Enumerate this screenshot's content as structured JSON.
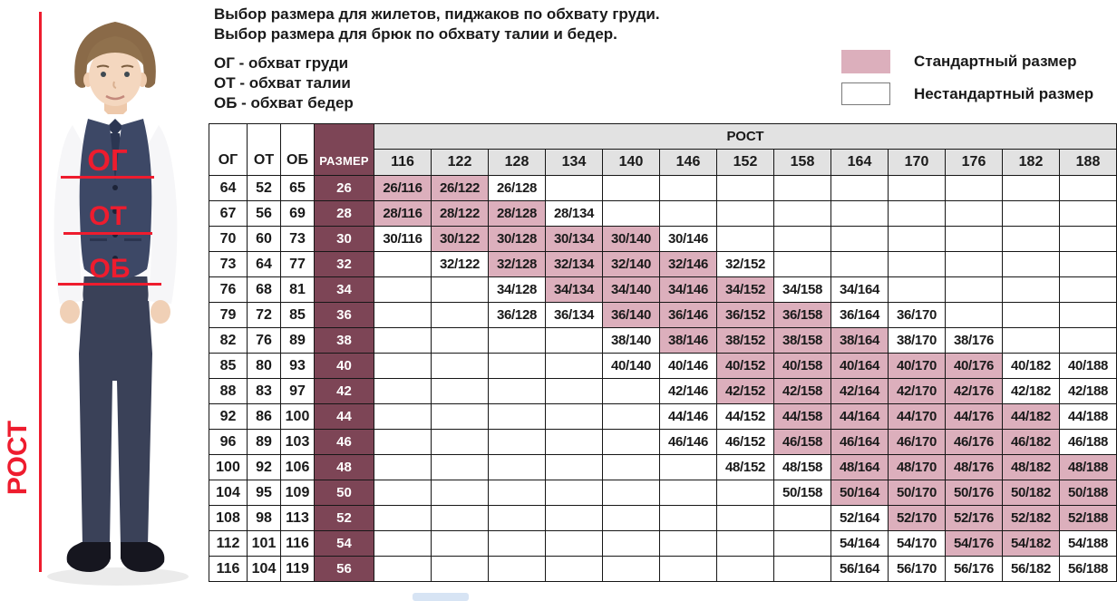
{
  "page": {
    "title_line1": "Выбор размера для жилетов, пиджаков по обхвату груди.",
    "title_line2": "Выбор размера для брюк по обхвату талии и бедер.",
    "definitions": [
      "ОГ - обхват груди",
      "ОТ - обхват талии",
      "ОБ - обхват бедер"
    ]
  },
  "legend": {
    "standard": "Стандартный размер",
    "nonstandard": "Нестандартный размер"
  },
  "figure": {
    "chest_label": "ОГ",
    "waist_label": "ОТ",
    "hips_label": "ОБ",
    "height_label": "РОСТ"
  },
  "colors": {
    "standard_cell": "#dcafbc",
    "size_column": "#7d4556",
    "header_gray": "#e2e2e2",
    "accent_red": "#ee1c2e",
    "border": "#161616"
  },
  "chart_data": {
    "type": "table",
    "columns": [
      "ОГ",
      "ОТ",
      "ОБ",
      "РАЗМЕР"
    ],
    "rost_header": "РОСТ",
    "rost_columns": [
      116,
      122,
      128,
      134,
      140,
      146,
      152,
      158,
      164,
      170,
      176,
      182,
      188
    ],
    "cell_kinds": {
      "S": "Стандартный размер",
      "N": "Нестандартный размер"
    },
    "rows": [
      {
        "og": 64,
        "ot": 52,
        "ob": 65,
        "size": 26,
        "cells": [
          [
            "26/116",
            "S"
          ],
          [
            "26/122",
            "S"
          ],
          [
            "26/128",
            "N"
          ],
          null,
          null,
          null,
          null,
          null,
          null,
          null,
          null,
          null,
          null
        ]
      },
      {
        "og": 67,
        "ot": 56,
        "ob": 69,
        "size": 28,
        "cells": [
          [
            "28/116",
            "S"
          ],
          [
            "28/122",
            "S"
          ],
          [
            "28/128",
            "S"
          ],
          [
            "28/134",
            "N"
          ],
          null,
          null,
          null,
          null,
          null,
          null,
          null,
          null,
          null
        ]
      },
      {
        "og": 70,
        "ot": 60,
        "ob": 73,
        "size": 30,
        "cells": [
          [
            "30/116",
            "N"
          ],
          [
            "30/122",
            "S"
          ],
          [
            "30/128",
            "S"
          ],
          [
            "30/134",
            "S"
          ],
          [
            "30/140",
            "S"
          ],
          [
            "30/146",
            "N"
          ],
          null,
          null,
          null,
          null,
          null,
          null,
          null
        ]
      },
      {
        "og": 73,
        "ot": 64,
        "ob": 77,
        "size": 32,
        "cells": [
          null,
          [
            "32/122",
            "N"
          ],
          [
            "32/128",
            "S"
          ],
          [
            "32/134",
            "S"
          ],
          [
            "32/140",
            "S"
          ],
          [
            "32/146",
            "S"
          ],
          [
            "32/152",
            "N"
          ],
          null,
          null,
          null,
          null,
          null,
          null
        ]
      },
      {
        "og": 76,
        "ot": 68,
        "ob": 81,
        "size": 34,
        "cells": [
          null,
          null,
          [
            "34/128",
            "N"
          ],
          [
            "34/134",
            "S"
          ],
          [
            "34/140",
            "S"
          ],
          [
            "34/146",
            "S"
          ],
          [
            "34/152",
            "S"
          ],
          [
            "34/158",
            "N"
          ],
          [
            "34/164",
            "N"
          ],
          null,
          null,
          null,
          null
        ]
      },
      {
        "og": 79,
        "ot": 72,
        "ob": 85,
        "size": 36,
        "cells": [
          null,
          null,
          [
            "36/128",
            "N"
          ],
          [
            "36/134",
            "N"
          ],
          [
            "36/140",
            "S"
          ],
          [
            "36/146",
            "S"
          ],
          [
            "36/152",
            "S"
          ],
          [
            "36/158",
            "S"
          ],
          [
            "36/164",
            "N"
          ],
          [
            "36/170",
            "N"
          ],
          null,
          null,
          null
        ]
      },
      {
        "og": 82,
        "ot": 76,
        "ob": 89,
        "size": 38,
        "cells": [
          null,
          null,
          null,
          null,
          [
            "38/140",
            "N"
          ],
          [
            "38/146",
            "S"
          ],
          [
            "38/152",
            "S"
          ],
          [
            "38/158",
            "S"
          ],
          [
            "38/164",
            "S"
          ],
          [
            "38/170",
            "N"
          ],
          [
            "38/176",
            "N"
          ],
          null,
          null
        ]
      },
      {
        "og": 85,
        "ot": 80,
        "ob": 93,
        "size": 40,
        "cells": [
          null,
          null,
          null,
          null,
          [
            "40/140",
            "N"
          ],
          [
            "40/146",
            "N"
          ],
          [
            "40/152",
            "S"
          ],
          [
            "40/158",
            "S"
          ],
          [
            "40/164",
            "S"
          ],
          [
            "40/170",
            "S"
          ],
          [
            "40/176",
            "S"
          ],
          [
            "40/182",
            "N"
          ],
          [
            "40/188",
            "N"
          ]
        ]
      },
      {
        "og": 88,
        "ot": 83,
        "ob": 97,
        "size": 42,
        "cells": [
          null,
          null,
          null,
          null,
          null,
          [
            "42/146",
            "N"
          ],
          [
            "42/152",
            "S"
          ],
          [
            "42/158",
            "S"
          ],
          [
            "42/164",
            "S"
          ],
          [
            "42/170",
            "S"
          ],
          [
            "42/176",
            "S"
          ],
          [
            "42/182",
            "N"
          ],
          [
            "42/188",
            "N"
          ]
        ]
      },
      {
        "og": 92,
        "ot": 86,
        "ob": 100,
        "size": 44,
        "cells": [
          null,
          null,
          null,
          null,
          null,
          [
            "44/146",
            "N"
          ],
          [
            "44/152",
            "N"
          ],
          [
            "44/158",
            "S"
          ],
          [
            "44/164",
            "S"
          ],
          [
            "44/170",
            "S"
          ],
          [
            "44/176",
            "S"
          ],
          [
            "44/182",
            "S"
          ],
          [
            "44/188",
            "N"
          ]
        ]
      },
      {
        "og": 96,
        "ot": 89,
        "ob": 103,
        "size": 46,
        "cells": [
          null,
          null,
          null,
          null,
          null,
          [
            "46/146",
            "N"
          ],
          [
            "46/152",
            "N"
          ],
          [
            "46/158",
            "S"
          ],
          [
            "46/164",
            "S"
          ],
          [
            "46/170",
            "S"
          ],
          [
            "46/176",
            "S"
          ],
          [
            "46/182",
            "S"
          ],
          [
            "46/188",
            "N"
          ]
        ]
      },
      {
        "og": 100,
        "ot": 92,
        "ob": 106,
        "size": 48,
        "cells": [
          null,
          null,
          null,
          null,
          null,
          null,
          [
            "48/152",
            "N"
          ],
          [
            "48/158",
            "N"
          ],
          [
            "48/164",
            "S"
          ],
          [
            "48/170",
            "S"
          ],
          [
            "48/176",
            "S"
          ],
          [
            "48/182",
            "S"
          ],
          [
            "48/188",
            "S"
          ]
        ]
      },
      {
        "og": 104,
        "ot": 95,
        "ob": 109,
        "size": 50,
        "cells": [
          null,
          null,
          null,
          null,
          null,
          null,
          null,
          [
            "50/158",
            "N"
          ],
          [
            "50/164",
            "S"
          ],
          [
            "50/170",
            "S"
          ],
          [
            "50/176",
            "S"
          ],
          [
            "50/182",
            "S"
          ],
          [
            "50/188",
            "S"
          ]
        ]
      },
      {
        "og": 108,
        "ot": 98,
        "ob": 113,
        "size": 52,
        "cells": [
          null,
          null,
          null,
          null,
          null,
          null,
          null,
          null,
          [
            "52/164",
            "N"
          ],
          [
            "52/170",
            "S"
          ],
          [
            "52/176",
            "S"
          ],
          [
            "52/182",
            "S"
          ],
          [
            "52/188",
            "S"
          ]
        ]
      },
      {
        "og": 112,
        "ot": 101,
        "ob": 116,
        "size": 54,
        "cells": [
          null,
          null,
          null,
          null,
          null,
          null,
          null,
          null,
          [
            "54/164",
            "N"
          ],
          [
            "54/170",
            "N"
          ],
          [
            "54/176",
            "S"
          ],
          [
            "54/182",
            "S"
          ],
          [
            "54/188",
            "N"
          ]
        ]
      },
      {
        "og": 116,
        "ot": 104,
        "ob": 119,
        "size": 56,
        "cells": [
          null,
          null,
          null,
          null,
          null,
          null,
          null,
          null,
          [
            "56/164",
            "N"
          ],
          [
            "56/170",
            "N"
          ],
          [
            "56/176",
            "N"
          ],
          [
            "56/182",
            "N"
          ],
          [
            "56/188",
            "N"
          ]
        ]
      }
    ]
  }
}
